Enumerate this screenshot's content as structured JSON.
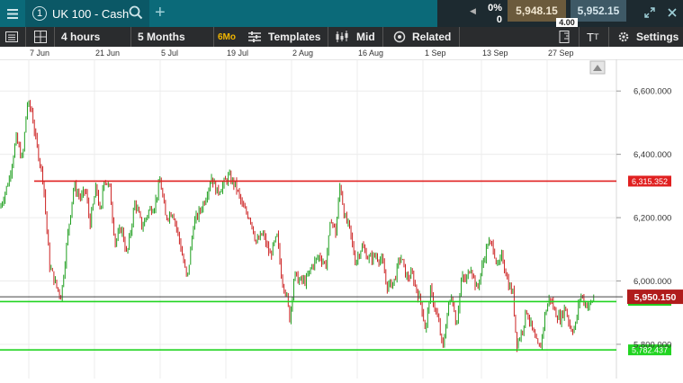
{
  "header": {
    "tab_number": "1",
    "instrument": "UK 100 - Cash",
    "change_percent": "0%",
    "change_points": "0",
    "sell_price": "5,948.15",
    "spread": "4.00",
    "buy_price": "5,952.15"
  },
  "toolbar": {
    "interval": "4 hours",
    "range": "5 Months",
    "range_short": "6Mo",
    "templates": "Templates",
    "price_type": "Mid",
    "related": "Related",
    "settings": "Settings"
  },
  "chart_data": {
    "type": "candlestick",
    "x_tick_labels": [
      "7 Jun",
      "21 Jun",
      "5 Jul",
      "19 Jul",
      "2 Aug",
      "16 Aug",
      "1 Sep",
      "13 Sep",
      "27 Sep"
    ],
    "y_tick_labels": [
      "6,600.000",
      "6,400.000",
      "6,200.000",
      "6,000.000",
      "5,800.000"
    ],
    "y_ticks": [
      6600,
      6400,
      6200,
      6000,
      5800
    ],
    "ylim": [
      5692,
      6700
    ],
    "current_price": 5950.15,
    "current_price_label": "5,950.150",
    "horizontal_lines": [
      {
        "value": 6315.352,
        "label": "6,315.352",
        "color": "#e02020"
      },
      {
        "value": 5935,
        "label": "",
        "color": "#21d421"
      },
      {
        "value": 5782.437,
        "label": "5,782.437",
        "color": "#21d421"
      }
    ],
    "price_path": [
      [
        0,
        6230
      ],
      [
        10,
        6320
      ],
      [
        18,
        6450
      ],
      [
        25,
        6380
      ],
      [
        30,
        6560
      ],
      [
        35,
        6540
      ],
      [
        40,
        6440
      ],
      [
        48,
        6320
      ],
      [
        55,
        6050
      ],
      [
        63,
        5980
      ],
      [
        68,
        5950
      ],
      [
        75,
        6140
      ],
      [
        82,
        6300
      ],
      [
        90,
        6260
      ],
      [
        95,
        6290
      ],
      [
        100,
        6180
      ],
      [
        107,
        6300
      ],
      [
        112,
        6200
      ],
      [
        115,
        6330
      ],
      [
        122,
        6290
      ],
      [
        128,
        6120
      ],
      [
        135,
        6170
      ],
      [
        141,
        6080
      ],
      [
        150,
        6250
      ],
      [
        158,
        6170
      ],
      [
        165,
        6220
      ],
      [
        172,
        6240
      ],
      [
        178,
        6320
      ],
      [
        184,
        6200
      ],
      [
        192,
        6220
      ],
      [
        200,
        6120
      ],
      [
        208,
        6000
      ],
      [
        215,
        6180
      ],
      [
        222,
        6220
      ],
      [
        228,
        6260
      ],
      [
        235,
        6330
      ],
      [
        241,
        6280
      ],
      [
        247,
        6300
      ],
      [
        254,
        6330
      ],
      [
        262,
        6300
      ],
      [
        270,
        6230
      ],
      [
        278,
        6200
      ],
      [
        285,
        6120
      ],
      [
        292,
        6150
      ],
      [
        300,
        6080
      ],
      [
        308,
        6140
      ],
      [
        313,
        6010
      ],
      [
        318,
        5960
      ],
      [
        322,
        5880
      ],
      [
        327,
        6020
      ],
      [
        333,
        6000
      ],
      [
        340,
        6000
      ],
      [
        347,
        6050
      ],
      [
        355,
        6080
      ],
      [
        362,
        6050
      ],
      [
        368,
        6200
      ],
      [
        373,
        6150
      ],
      [
        378,
        6310
      ],
      [
        383,
        6200
      ],
      [
        388,
        6170
      ],
      [
        395,
        6060
      ],
      [
        402,
        6110
      ],
      [
        410,
        6070
      ],
      [
        418,
        6080
      ],
      [
        425,
        6060
      ],
      [
        430,
        5980
      ],
      [
        438,
        6000
      ],
      [
        445,
        6080
      ],
      [
        452,
        6010
      ],
      [
        458,
        6020
      ],
      [
        463,
        5970
      ],
      [
        468,
        5930
      ],
      [
        473,
        5840
      ],
      [
        478,
        5970
      ],
      [
        483,
        5920
      ],
      [
        488,
        5860
      ],
      [
        492,
        5780
      ],
      [
        497,
        5900
      ],
      [
        502,
        5960
      ],
      [
        507,
        5860
      ],
      [
        513,
        6010
      ],
      [
        518,
        6000
      ],
      [
        523,
        6050
      ],
      [
        530,
        5970
      ],
      [
        537,
        6060
      ],
      [
        542,
        6120
      ],
      [
        548,
        6110
      ],
      [
        553,
        6040
      ],
      [
        558,
        6080
      ],
      [
        565,
        5990
      ],
      [
        570,
        5960
      ],
      [
        574,
        5800
      ],
      [
        580,
        5840
      ],
      [
        585,
        5910
      ],
      [
        590,
        5860
      ],
      [
        595,
        5810
      ],
      [
        600,
        5780
      ],
      [
        606,
        5900
      ],
      [
        611,
        5950
      ],
      [
        617,
        5900
      ],
      [
        623,
        5880
      ],
      [
        628,
        5920
      ],
      [
        634,
        5850
      ],
      [
        639,
        5850
      ],
      [
        645,
        5960
      ],
      [
        650,
        5930
      ],
      [
        655,
        5920
      ],
      [
        660,
        5950
      ]
    ]
  }
}
